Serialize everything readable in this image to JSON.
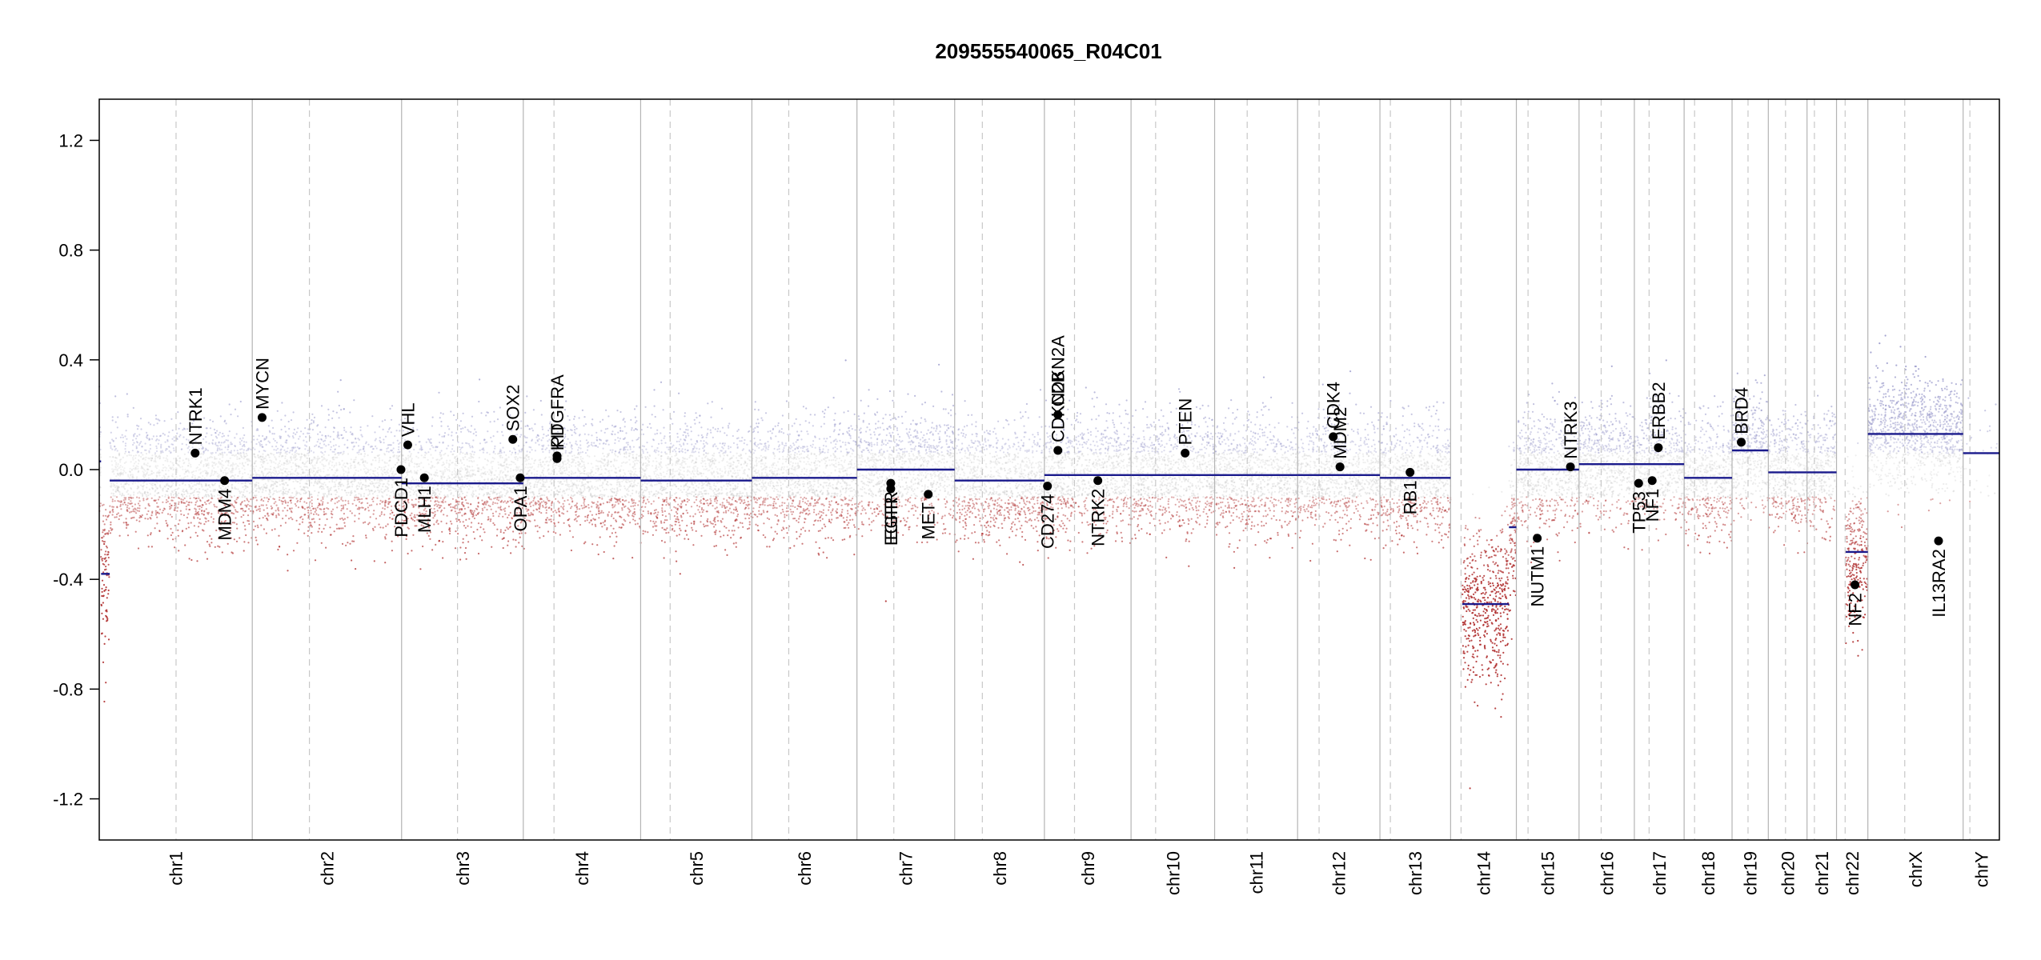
{
  "chart_data": {
    "type": "scatter",
    "title": "209555540065_R04C01",
    "xlabel": "",
    "ylabel": "",
    "ylim": [
      -1.35,
      1.35
    ],
    "yticks": [
      -1.2,
      -0.8,
      -0.4,
      0.0,
      0.4,
      0.8,
      1.2
    ],
    "ytick_labels": [
      "-1.2",
      "-0.8",
      "-0.4",
      "0.0",
      "0.4",
      "0.8",
      "1.2"
    ],
    "grid": false,
    "legend": "none",
    "colors": {
      "gain": "#9a9acb",
      "loss": "#b03030",
      "neutral": "#c8c8c8",
      "segment": "#1a1a8c",
      "boundary": "#b4b4b4",
      "centromere": "#c8c8c8",
      "gene_point": "#000000"
    },
    "chromosomes": [
      {
        "name": "chr1",
        "length": 249,
        "centromere": 125
      },
      {
        "name": "chr2",
        "length": 243,
        "centromere": 93
      },
      {
        "name": "chr3",
        "length": 198,
        "centromere": 91
      },
      {
        "name": "chr4",
        "length": 191,
        "centromere": 50
      },
      {
        "name": "chr5",
        "length": 181,
        "centromere": 48
      },
      {
        "name": "chr6",
        "length": 171,
        "centromere": 60
      },
      {
        "name": "chr7",
        "length": 159,
        "centromere": 60
      },
      {
        "name": "chr8",
        "length": 146,
        "centromere": 45
      },
      {
        "name": "chr9",
        "length": 141,
        "centromere": 49
      },
      {
        "name": "chr10",
        "length": 136,
        "centromere": 40
      },
      {
        "name": "chr11",
        "length": 135,
        "centromere": 53
      },
      {
        "name": "chr12",
        "length": 134,
        "centromere": 35
      },
      {
        "name": "chr13",
        "length": 115,
        "centromere": 17
      },
      {
        "name": "chr14",
        "length": 107,
        "centromere": 17
      },
      {
        "name": "chr15",
        "length": 102,
        "centromere": 19
      },
      {
        "name": "chr16",
        "length": 90,
        "centromere": 36
      },
      {
        "name": "chr17",
        "length": 81,
        "centromere": 24
      },
      {
        "name": "chr18",
        "length": 78,
        "centromere": 17
      },
      {
        "name": "chr19",
        "length": 59,
        "centromere": 26
      },
      {
        "name": "chr20",
        "length": 63,
        "centromere": 28
      },
      {
        "name": "chr21",
        "length": 48,
        "centromere": 12
      },
      {
        "name": "chr22",
        "length": 51,
        "centromere": 14
      },
      {
        "name": "chrX",
        "length": 155,
        "centromere": 60
      },
      {
        "name": "chrY",
        "length": 59,
        "centromere": 11
      }
    ],
    "segments": [
      {
        "chr": "chr1",
        "start": 0,
        "end": 3,
        "value": 0.03
      },
      {
        "chr": "chr1",
        "start": 3,
        "end": 17,
        "value": -0.38
      },
      {
        "chr": "chr1",
        "start": 17,
        "end": 249,
        "value": -0.04
      },
      {
        "chr": "chr2",
        "start": 0,
        "end": 243,
        "value": -0.03
      },
      {
        "chr": "chr3",
        "start": 0,
        "end": 198,
        "value": -0.05
      },
      {
        "chr": "chr4",
        "start": 0,
        "end": 191,
        "value": -0.03
      },
      {
        "chr": "chr5",
        "start": 0,
        "end": 181,
        "value": -0.04
      },
      {
        "chr": "chr6",
        "start": 0,
        "end": 171,
        "value": -0.03
      },
      {
        "chr": "chr7",
        "start": 0,
        "end": 159,
        "value": 0.0
      },
      {
        "chr": "chr8",
        "start": 0,
        "end": 146,
        "value": -0.04
      },
      {
        "chr": "chr9",
        "start": 0,
        "end": 141,
        "value": -0.02
      },
      {
        "chr": "chr10",
        "start": 0,
        "end": 136,
        "value": -0.02
      },
      {
        "chr": "chr11",
        "start": 0,
        "end": 135,
        "value": -0.02
      },
      {
        "chr": "chr12",
        "start": 0,
        "end": 134,
        "value": -0.02
      },
      {
        "chr": "chr13",
        "start": 0,
        "end": 115,
        "value": -0.03
      },
      {
        "chr": "chr14",
        "start": 19,
        "end": 95,
        "value": -0.49
      },
      {
        "chr": "chr14",
        "start": 95,
        "end": 107,
        "value": -0.21
      },
      {
        "chr": "chr15",
        "start": 0,
        "end": 102,
        "value": 0.0
      },
      {
        "chr": "chr16",
        "start": 0,
        "end": 90,
        "value": 0.02
      },
      {
        "chr": "chr17",
        "start": 0,
        "end": 81,
        "value": 0.02
      },
      {
        "chr": "chr18",
        "start": 0,
        "end": 78,
        "value": -0.03
      },
      {
        "chr": "chr19",
        "start": 0,
        "end": 59,
        "value": 0.07
      },
      {
        "chr": "chr20",
        "start": 0,
        "end": 63,
        "value": -0.01
      },
      {
        "chr": "chr21",
        "start": 0,
        "end": 48,
        "value": -0.01
      },
      {
        "chr": "chr22",
        "start": 15,
        "end": 51,
        "value": -0.3
      },
      {
        "chr": "chrX",
        "start": 0,
        "end": 155,
        "value": 0.13
      },
      {
        "chr": "chrY",
        "start": 0,
        "end": 59,
        "value": 0.06
      }
    ],
    "genes": [
      {
        "name": "NTRK1",
        "chr": "chr1",
        "pos": 156,
        "value": 0.06,
        "label_side": "above"
      },
      {
        "name": "MDM4",
        "chr": "chr1",
        "pos": 204,
        "value": -0.04,
        "label_side": "below"
      },
      {
        "name": "MYCN",
        "chr": "chr2",
        "pos": 16,
        "value": 0.19,
        "label_side": "above"
      },
      {
        "name": "PDCD1",
        "chr": "chr2",
        "pos": 242,
        "value": 0.0,
        "label_side": "below"
      },
      {
        "name": "VHL",
        "chr": "chr3",
        "pos": 10,
        "value": 0.09,
        "label_side": "above"
      },
      {
        "name": "MLH1",
        "chr": "chr3",
        "pos": 37,
        "value": -0.03,
        "label_side": "below"
      },
      {
        "name": "SOX2",
        "chr": "chr3",
        "pos": 181,
        "value": 0.11,
        "label_side": "above"
      },
      {
        "name": "OPA1",
        "chr": "chr3",
        "pos": 193,
        "value": -0.03,
        "label_side": "below"
      },
      {
        "name": "PDGFRA",
        "chr": "chr4",
        "pos": 55,
        "value": 0.05,
        "label_side": "above"
      },
      {
        "name": "KIT",
        "chr": "chr4",
        "pos": 55,
        "value": 0.04,
        "label_side": "above"
      },
      {
        "name": "EGFR",
        "chr": "chr7",
        "pos": 55,
        "value": -0.05,
        "label_side": "below"
      },
      {
        "name": "EGFR",
        "chr": "chr7",
        "pos": 55,
        "value": -0.07,
        "label_side": "below"
      },
      {
        "name": "MET",
        "chr": "chr7",
        "pos": 116,
        "value": -0.09,
        "label_side": "below"
      },
      {
        "name": "CDKN2A",
        "chr": "chr9",
        "pos": 22,
        "value": 0.2,
        "label_side": "above"
      },
      {
        "name": "CDKN2B",
        "chr": "chr9",
        "pos": 22,
        "value": 0.07,
        "label_side": "above"
      },
      {
        "name": "CD274",
        "chr": "chr9",
        "pos": 5,
        "value": -0.06,
        "label_side": "below"
      },
      {
        "name": "NTRK2",
        "chr": "chr9",
        "pos": 87,
        "value": -0.04,
        "label_side": "below"
      },
      {
        "name": "PTEN",
        "chr": "chr10",
        "pos": 88,
        "value": 0.06,
        "label_side": "above"
      },
      {
        "name": "CDK4",
        "chr": "chr12",
        "pos": 58,
        "value": 0.12,
        "label_side": "above"
      },
      {
        "name": "MDM2",
        "chr": "chr12",
        "pos": 69,
        "value": 0.01,
        "label_side": "above"
      },
      {
        "name": "RB1",
        "chr": "chr13",
        "pos": 49,
        "value": -0.01,
        "label_side": "below"
      },
      {
        "name": "NUTM1",
        "chr": "chr15",
        "pos": 34,
        "value": -0.25,
        "label_side": "below"
      },
      {
        "name": "NTRK3",
        "chr": "chr15",
        "pos": 88,
        "value": 0.01,
        "label_side": "above"
      },
      {
        "name": "TP53",
        "chr": "chr17",
        "pos": 7,
        "value": -0.05,
        "label_side": "below"
      },
      {
        "name": "NF1",
        "chr": "chr17",
        "pos": 29,
        "value": -0.04,
        "label_side": "below"
      },
      {
        "name": "ERBB2",
        "chr": "chr17",
        "pos": 39,
        "value": 0.08,
        "label_side": "above"
      },
      {
        "name": "BRD4",
        "chr": "chr19",
        "pos": 15,
        "value": 0.1,
        "label_side": "above"
      },
      {
        "name": "NF2",
        "chr": "chr22",
        "pos": 30,
        "value": -0.42,
        "label_side": "below"
      },
      {
        "name": "IL13RA2",
        "chr": "chrX",
        "pos": 115,
        "value": -0.26,
        "label_side": "below"
      }
    ]
  }
}
